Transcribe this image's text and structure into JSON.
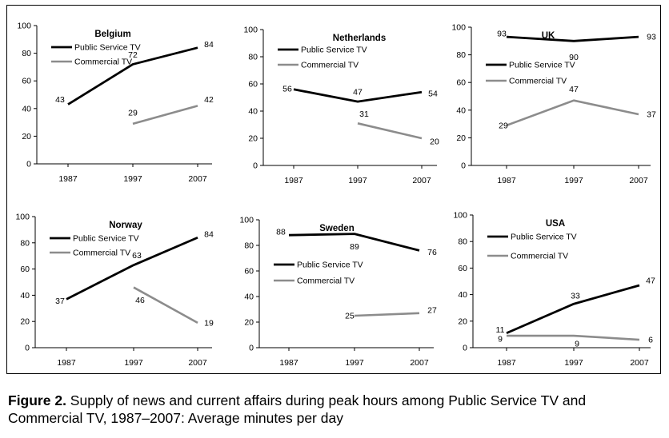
{
  "chart_data": [
    {
      "type": "line",
      "title": "Belgium",
      "categories": [
        "1987",
        "1997",
        "2007"
      ],
      "yticks": [
        "0",
        "20",
        "40",
        "60",
        "80",
        "100"
      ],
      "ylim": [
        0,
        100
      ],
      "legend": "top-left",
      "series": [
        {
          "name": "Public Service TV",
          "color": "#000000",
          "values": [
            43,
            72,
            84
          ],
          "labels": [
            "43",
            "72",
            "84"
          ]
        },
        {
          "name": "Commercial TV",
          "color": "#8c8c8c",
          "values": [
            null,
            29,
            42
          ],
          "labels": [
            "",
            "29",
            "42"
          ]
        }
      ]
    },
    {
      "type": "line",
      "title": "Netherlands",
      "categories": [
        "1987",
        "1997",
        "2007"
      ],
      "yticks": [
        "0",
        "20",
        "40",
        "60",
        "80",
        "100"
      ],
      "ylim": [
        0,
        100
      ],
      "legend": "top-left",
      "series": [
        {
          "name": "Public Service TV",
          "color": "#000000",
          "values": [
            56,
            47,
            54
          ],
          "labels": [
            "56",
            "47",
            "54"
          ]
        },
        {
          "name": "Commercial TV",
          "color": "#8c8c8c",
          "values": [
            null,
            31,
            20
          ],
          "labels": [
            "",
            "31",
            "20"
          ]
        }
      ]
    },
    {
      "type": "line",
      "title": "UK",
      "categories": [
        "1987",
        "1997",
        "2007"
      ],
      "yticks": [
        "0",
        "20",
        "40",
        "60",
        "80",
        "100"
      ],
      "ylim": [
        0,
        100
      ],
      "legend": "top-left",
      "series": [
        {
          "name": "Public Service TV",
          "color": "#000000",
          "values": [
            93,
            90,
            93
          ],
          "labels": [
            "93",
            "90",
            "93"
          ]
        },
        {
          "name": "Commercial TV",
          "color": "#8c8c8c",
          "values": [
            29,
            47,
            37
          ],
          "labels": [
            "29",
            "47",
            "37"
          ]
        }
      ]
    },
    {
      "type": "line",
      "title": "Norway",
      "categories": [
        "1987",
        "1997",
        "2007"
      ],
      "yticks": [
        "0",
        "20",
        "40",
        "60",
        "80",
        "100"
      ],
      "ylim": [
        0,
        100
      ],
      "legend": "top-left",
      "series": [
        {
          "name": "Public Service TV",
          "color": "#000000",
          "values": [
            37,
            63,
            84
          ],
          "labels": [
            "37",
            "63",
            "84"
          ]
        },
        {
          "name": "Commercial TV",
          "color": "#8c8c8c",
          "values": [
            null,
            46,
            19
          ],
          "labels": [
            "",
            "46",
            "19"
          ]
        }
      ]
    },
    {
      "type": "line",
      "title": "Sweden",
      "categories": [
        "1987",
        "1997",
        "2007"
      ],
      "yticks": [
        "0",
        "20",
        "40",
        "60",
        "80",
        "100"
      ],
      "ylim": [
        0,
        100
      ],
      "legend": "middle-left",
      "series": [
        {
          "name": "Public Service TV",
          "color": "#000000",
          "values": [
            88,
            89,
            76
          ],
          "labels": [
            "88",
            "89",
            "76"
          ]
        },
        {
          "name": "Commercial TV",
          "color": "#8c8c8c",
          "values": [
            null,
            25,
            27
          ],
          "labels": [
            "",
            "25",
            "27"
          ]
        }
      ]
    },
    {
      "type": "line",
      "title": "USA",
      "categories": [
        "1987",
        "1997",
        "2007"
      ],
      "yticks": [
        "0",
        "20",
        "40",
        "60",
        "80",
        "100"
      ],
      "ylim": [
        0,
        100
      ],
      "legend": "top-left",
      "series": [
        {
          "name": "Public Service TV",
          "color": "#000000",
          "values": [
            11,
            33,
            47
          ],
          "labels": [
            "11",
            "33",
            "47"
          ]
        },
        {
          "name": "Commercial TV",
          "color": "#8c8c8c",
          "values": [
            9,
            9,
            6
          ],
          "labels": [
            "9",
            "9",
            "6"
          ]
        }
      ]
    }
  ],
  "caption": {
    "lead": "Figure 2.",
    "text": " Supply of news and current affairs during peak hours among Public Service TV and Commercial TV, 1987–2007: Average minutes per day"
  }
}
